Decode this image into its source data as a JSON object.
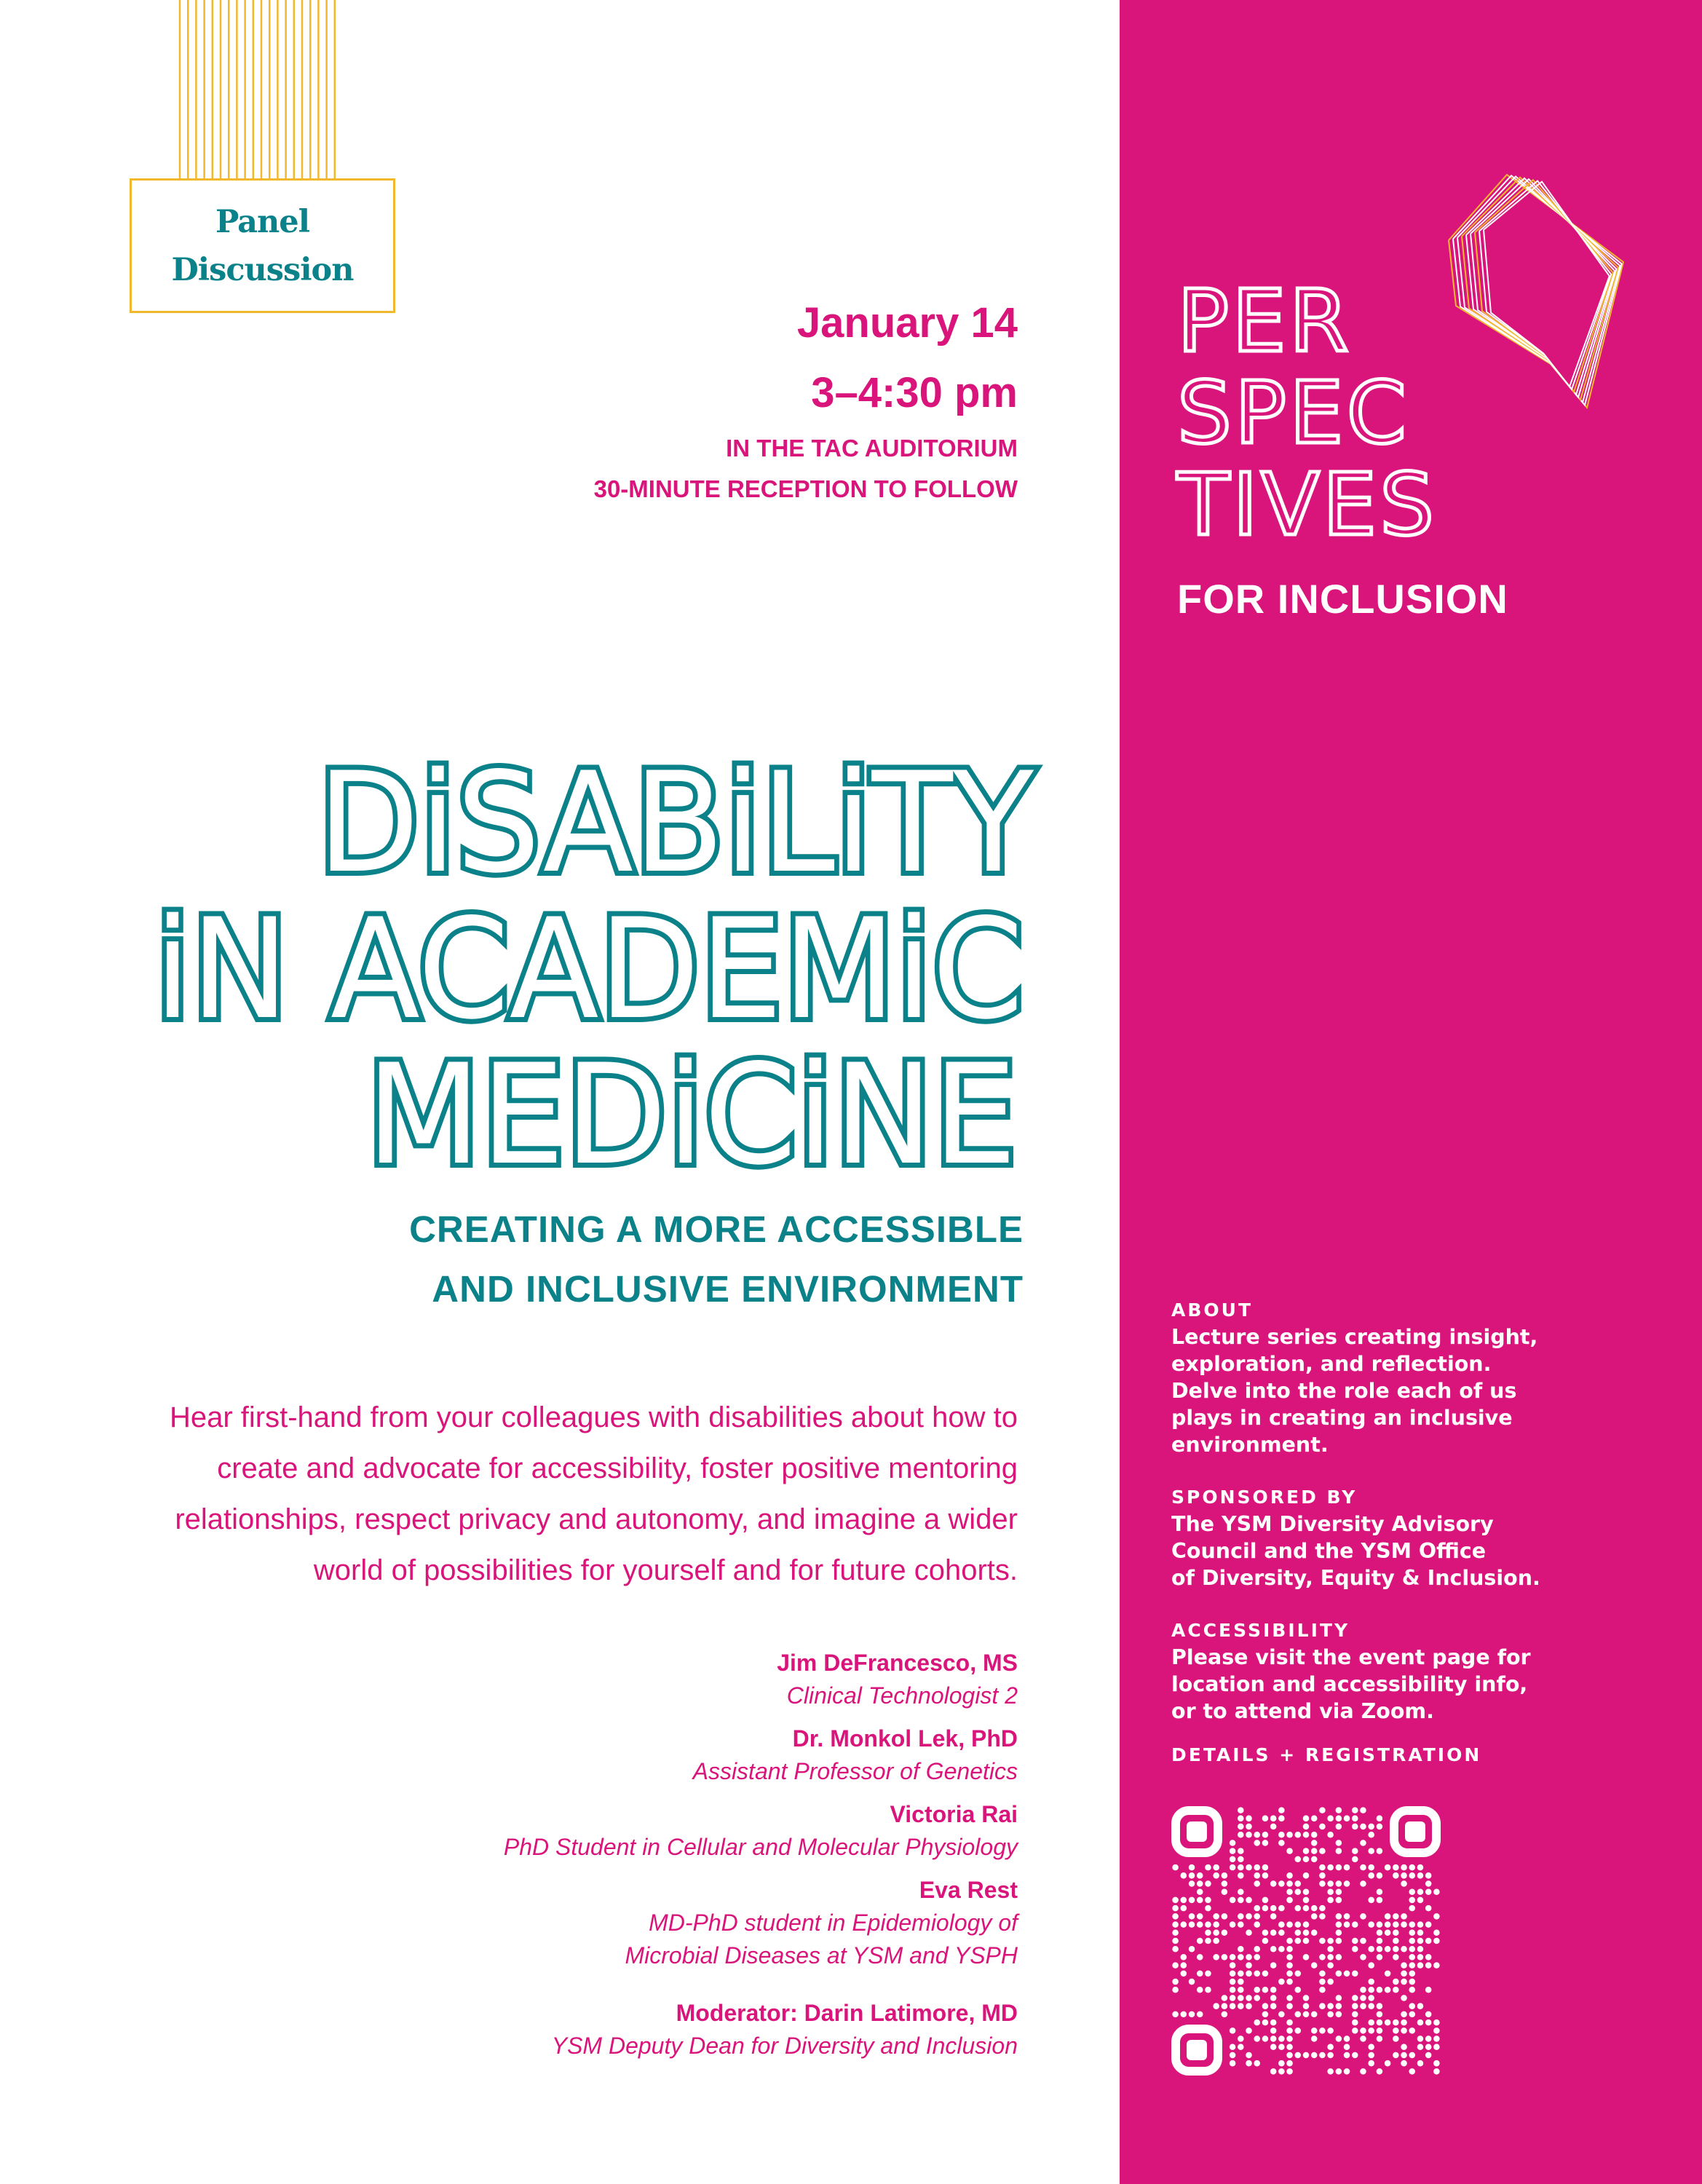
{
  "colors": {
    "pink": "#d9157b",
    "teal": "#0b8189",
    "gold": "#f1b82e",
    "white": "#ffffff"
  },
  "badge": {
    "line1": "Panel",
    "line2": "Discussion"
  },
  "event": {
    "date": "January 14",
    "time": "3–4:30 pm",
    "location": "IN THE TAC AUDITORIUM",
    "reception": "30-MINUTE RECEPTION TO FOLLOW"
  },
  "series": {
    "logo_lines": [
      "PER",
      "SPEC",
      "TIVES"
    ],
    "tagline": "FOR INCLUSION"
  },
  "title": {
    "lines": [
      "DiSABiLiTY",
      "iN ACADEMiC",
      "MEDiCiNE"
    ]
  },
  "subtitle": {
    "line1": "CREATING A MORE ACCESSIBLE",
    "line2": "AND INCLUSIVE ENVIRONMENT"
  },
  "description": "Hear first-hand from your colleagues with disabilities about how to create and advocate for accessibility, foster positive mentoring relationships, respect privacy and autonomy, and imagine a wider world of possibilities for yourself and for future cohorts.",
  "speakers": [
    {
      "name": "Jim DeFrancesco, MS",
      "role": "Clinical Technologist 2"
    },
    {
      "name": "Dr. Monkol Lek, PhD",
      "role": "Assistant Professor of Genetics"
    },
    {
      "name": "Victoria Rai",
      "role": "PhD Student in Cellular and Molecular Physiology"
    },
    {
      "name": "Eva Rest",
      "role": "MD-PhD student in Epidemiology of",
      "role2": "Microbial Diseases at YSM and YSPH"
    },
    {
      "name": "Moderator: Darin Latimore, MD",
      "role": "YSM Deputy Dean for Diversity and Inclusion"
    }
  ],
  "info": {
    "about_heading": "ABOUT",
    "about_text": [
      "Lecture series creating insight,",
      "exploration, and reflection.",
      "Delve into the role each of us",
      "plays in creating an inclusive",
      "environment."
    ],
    "sponsor_heading": "SPONSORED BY",
    "sponsor_text": [
      "The YSM Diversity Advisory",
      "Council and the YSM Office",
      "of Diversity, Equity & Inclusion."
    ],
    "access_heading": "ACCESSIBILITY",
    "access_text": [
      "Please visit the event page for",
      "location and accessibility info,",
      "or to attend via Zoom."
    ],
    "details_heading": "DETAILS + REGISTRATION"
  },
  "qr_icon": "qr-code"
}
